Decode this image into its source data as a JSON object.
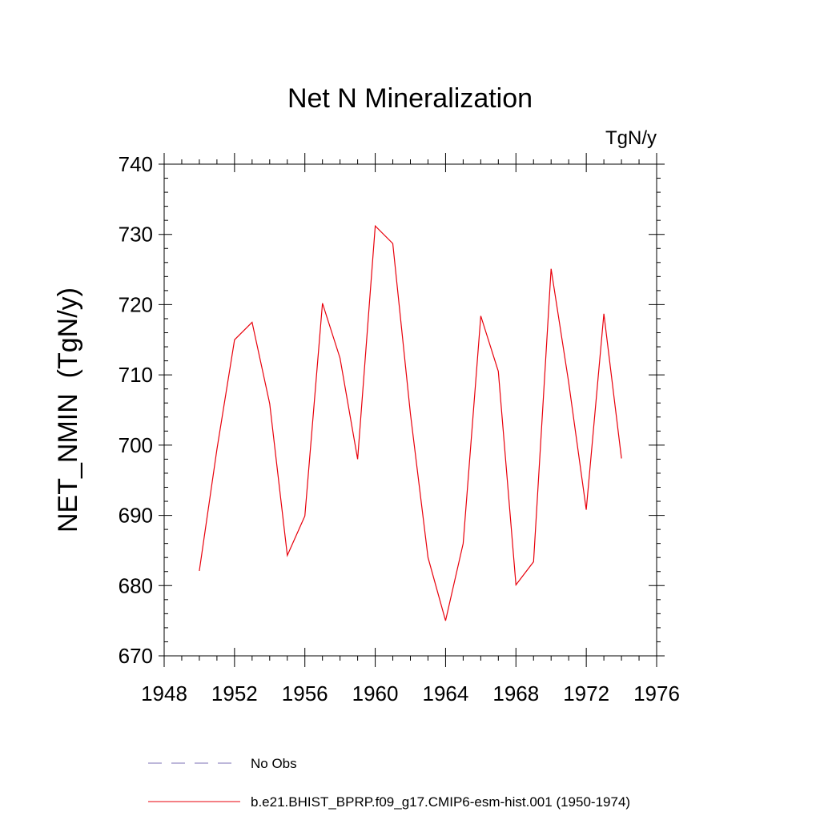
{
  "chart_data": {
    "type": "line",
    "title": "Net N Mineralization",
    "units_label": "TgN/y",
    "ylabel": "NET_NMIN  (TgN/y)",
    "xlabel": "",
    "xlim": [
      1948,
      1976
    ],
    "ylim": [
      670,
      740
    ],
    "x_ticks": [
      1948,
      1952,
      1956,
      1960,
      1964,
      1968,
      1972,
      1976
    ],
    "y_ticks": [
      670,
      680,
      690,
      700,
      710,
      720,
      730,
      740
    ],
    "grid": false,
    "colors": {
      "model": "#e8000b",
      "obs": "#7b6fb5",
      "axis": "#000000"
    },
    "series": [
      {
        "name": "b.e21.BHIST_BPRP.f09_g17.CMIP6-esm-hist.001 (1950-1974)",
        "style": "solid",
        "x": [
          1950,
          1951,
          1952,
          1953,
          1954,
          1955,
          1956,
          1957,
          1958,
          1959,
          1960,
          1961,
          1962,
          1963,
          1964,
          1965,
          1966,
          1967,
          1968,
          1969,
          1970,
          1971,
          1972,
          1973,
          1974
        ],
        "values": [
          682.1,
          699.4,
          715.0,
          717.5,
          705.9,
          684.3,
          689.9,
          720.2,
          712.4,
          698.0,
          731.2,
          728.7,
          704.5,
          684.0,
          675.0,
          686.0,
          718.4,
          710.5,
          680.1,
          683.4,
          725.1,
          708.9,
          690.8,
          718.7,
          698.1
        ]
      }
    ],
    "legend": {
      "position": "bottom-left",
      "entries": [
        {
          "label": "No Obs",
          "style": "dashed",
          "color": "#7b6fb5"
        },
        {
          "label": "b.e21.BHIST_BPRP.f09_g17.CMIP6-esm-hist.001 (1950-1974)",
          "style": "solid",
          "color": "#e8000b"
        }
      ]
    }
  }
}
